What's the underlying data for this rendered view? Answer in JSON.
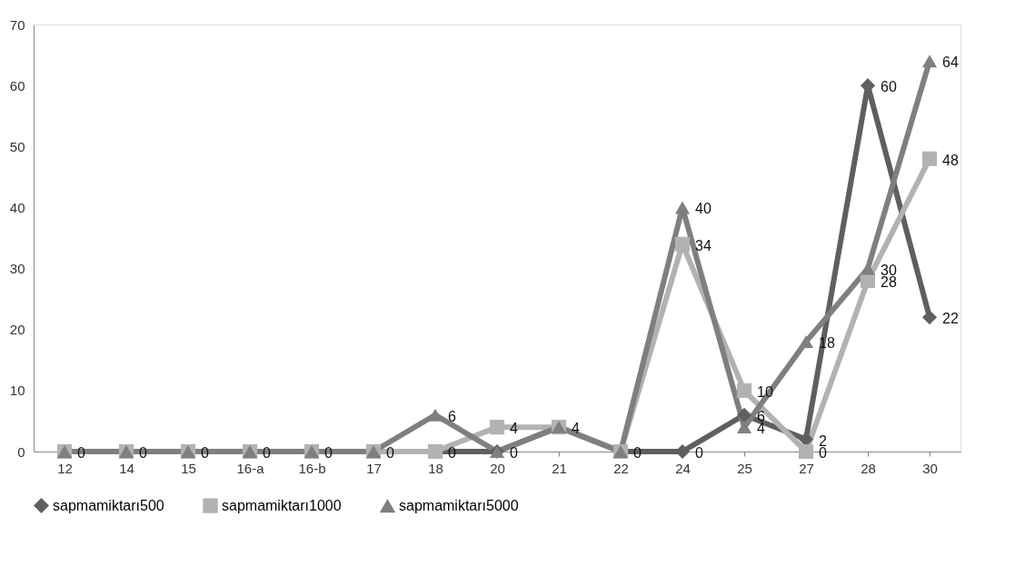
{
  "chart_data": {
    "type": "line",
    "categories": [
      "12",
      "14",
      "15",
      "16-a",
      "16-b",
      "17",
      "18",
      "20",
      "21",
      "22",
      "24",
      "25",
      "27",
      "28",
      "30"
    ],
    "series": [
      {
        "name": "sapmamiktarı500",
        "color": "#5f5f5f",
        "marker": "diamond",
        "values": [
          0,
          0,
          0,
          0,
          0,
          0,
          0,
          0,
          4,
          0,
          0,
          6,
          2,
          60,
          22
        ],
        "value_labels": [
          "0",
          "0",
          "0",
          "0",
          "0",
          "0",
          "0",
          "0",
          "4",
          "0",
          "0",
          "6",
          "2",
          "60",
          "22"
        ]
      },
      {
        "name": "sapmamiktarı1000",
        "color": "#b2b2b2",
        "marker": "square",
        "values": [
          0,
          0,
          0,
          0,
          0,
          0,
          0,
          4,
          4,
          0,
          34,
          10,
          0,
          28,
          48
        ],
        "value_labels": [
          null,
          null,
          null,
          null,
          null,
          null,
          null,
          "4",
          null,
          null,
          "34",
          "10",
          "0",
          "28",
          "48"
        ]
      },
      {
        "name": "sapmamiktarı5000",
        "color": "#7f7f7f",
        "marker": "triangle",
        "values": [
          0,
          0,
          0,
          0,
          0,
          0,
          6,
          0,
          4,
          0,
          40,
          4,
          18,
          30,
          64
        ],
        "value_labels": [
          null,
          null,
          null,
          null,
          null,
          null,
          "6",
          null,
          null,
          null,
          "40",
          "4",
          "18",
          "30",
          "64"
        ]
      }
    ],
    "ylim": [
      0,
      70
    ],
    "yticks": [
      0,
      10,
      20,
      30,
      40,
      50,
      60,
      70
    ],
    "grid": false,
    "legend": "bottom",
    "line_style": "solid"
  }
}
